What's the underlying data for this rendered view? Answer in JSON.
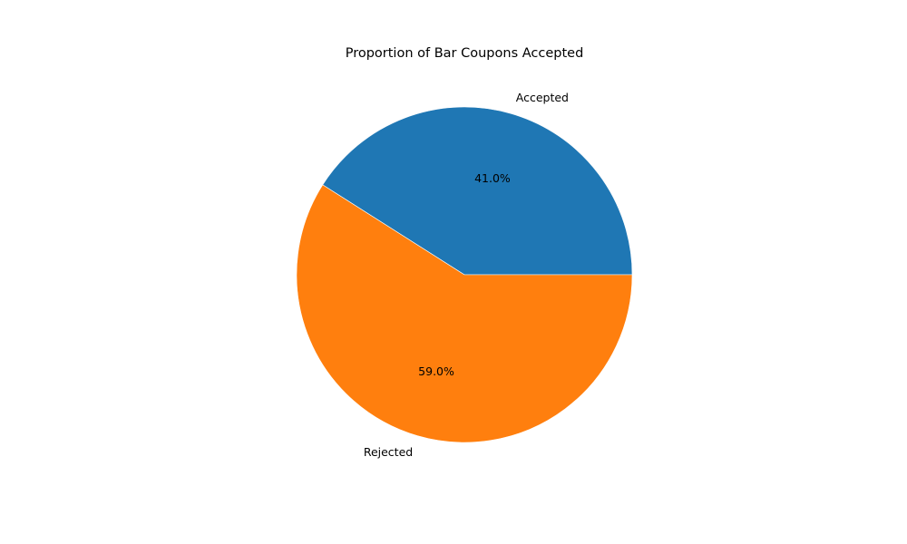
{
  "chart_data": {
    "type": "pie",
    "title": "Proportion of Bar Coupons Accepted",
    "slices": [
      {
        "label": "Accepted",
        "value": 41.0,
        "pct_label": "41.0%",
        "color": "#1f77b4"
      },
      {
        "label": "Rejected",
        "value": 59.0,
        "pct_label": "59.0%",
        "color": "#ff7f0e"
      }
    ],
    "start_angle": 0,
    "direction": "counterclockwise"
  }
}
